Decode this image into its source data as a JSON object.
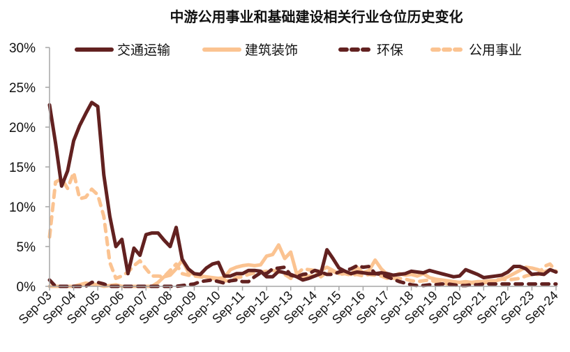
{
  "chart_data": {
    "type": "line",
    "title": "中游公用事业和基础建设相关行业仓位历史变化",
    "xlabel": "",
    "ylabel": "",
    "ylim": [
      0,
      30
    ],
    "yticks": [
      "0%",
      "5%",
      "10%",
      "15%",
      "20%",
      "25%",
      "30%"
    ],
    "xticks": [
      "Sep-03",
      "Sep-04",
      "Sep-05",
      "Sep-06",
      "Sep-07",
      "Sep-08",
      "Sep-09",
      "Sep-10",
      "Sep-11",
      "Sep-12",
      "Sep-13",
      "Sep-14",
      "Sep-15",
      "Sep-16",
      "Sep-17",
      "Sep-18",
      "Sep-19",
      "Sep-20",
      "Sep-21",
      "Sep-22",
      "Sep-23",
      "Sep-24"
    ],
    "grid": false,
    "legend_position": "top",
    "x": [
      2003.75,
      2004.0,
      2004.25,
      2004.5,
      2004.75,
      2005.0,
      2005.25,
      2005.5,
      2005.75,
      2006.0,
      2006.25,
      2006.5,
      2006.75,
      2007.0,
      2007.25,
      2007.5,
      2007.75,
      2008.0,
      2008.25,
      2008.5,
      2008.75,
      2009.0,
      2009.25,
      2009.5,
      2009.75,
      2010.0,
      2010.25,
      2010.5,
      2010.75,
      2011.0,
      2011.25,
      2011.5,
      2011.75,
      2012.0,
      2012.25,
      2012.5,
      2012.75,
      2013.0,
      2013.25,
      2013.5,
      2013.75,
      2014.0,
      2014.25,
      2014.5,
      2014.75,
      2015.0,
      2015.25,
      2015.5,
      2015.75,
      2016.0,
      2016.25,
      2016.5,
      2016.75,
      2017.0,
      2017.25,
      2017.5,
      2017.75,
      2018.0,
      2018.25,
      2018.5,
      2018.75,
      2019.0,
      2019.25,
      2019.5,
      2019.75,
      2020.0,
      2020.25,
      2020.5,
      2020.75,
      2021.0,
      2021.25,
      2021.5,
      2021.75,
      2022.0,
      2022.25,
      2022.5,
      2022.75,
      2023.0,
      2023.25,
      2023.5,
      2023.75,
      2024.0,
      2024.25,
      2024.5,
      2024.75
    ],
    "series": [
      {
        "name": "交通运输",
        "style": "solid",
        "color": "#622120",
        "values": [
          22.8,
          18.0,
          12.6,
          14.5,
          18.3,
          20.2,
          21.7,
          23.1,
          22.6,
          14.0,
          8.8,
          5.0,
          5.9,
          1.6,
          4.8,
          3.9,
          6.5,
          6.7,
          6.7,
          5.8,
          5.0,
          7.4,
          3.4,
          2.2,
          1.6,
          1.5,
          2.3,
          2.8,
          3.0,
          1.3,
          1.3,
          1.6,
          1.6,
          2.0,
          2.0,
          1.9,
          1.2,
          1.2,
          1.9,
          1.7,
          1.5,
          1.2,
          0.8,
          1.0,
          1.3,
          1.6,
          4.6,
          3.5,
          2.3,
          1.9,
          1.6,
          1.8,
          1.7,
          1.6,
          1.6,
          1.7,
          1.6,
          1.4,
          1.5,
          1.6,
          1.9,
          1.8,
          1.7,
          2.0,
          1.8,
          1.6,
          1.4,
          1.2,
          1.3,
          2.1,
          1.8,
          1.5,
          1.1,
          1.2,
          1.3,
          1.4,
          1.8,
          2.5,
          2.5,
          2.2,
          1.5,
          1.6,
          1.5,
          2.1,
          1.8
        ]
      },
      {
        "name": "建筑装饰",
        "style": "solid",
        "color": "#FBC391",
        "values": [
          0.0,
          0.0,
          0.0,
          0.0,
          0.0,
          0.2,
          0.4,
          0.3,
          0.2,
          0.0,
          0.1,
          0.2,
          0.0,
          0.0,
          0.0,
          0.0,
          0.0,
          0.0,
          0.5,
          1.2,
          1.4,
          2.2,
          3.3,
          1.8,
          1.5,
          1.3,
          1.2,
          1.1,
          1.0,
          1.1,
          2.1,
          2.4,
          2.6,
          2.7,
          2.6,
          2.7,
          3.8,
          4.0,
          5.2,
          3.5,
          4.3,
          1.5,
          1.1,
          1.3,
          1.3,
          2.0,
          2.4,
          2.0,
          1.6,
          1.7,
          1.5,
          2.4,
          1.7,
          2.0,
          3.3,
          2.2,
          1.5,
          1.3,
          1.6,
          1.4,
          1.5,
          1.3,
          1.6,
          1.1,
          0.9,
          0.8,
          0.7,
          0.6,
          0.5,
          0.6,
          0.5,
          0.6,
          0.6,
          0.7,
          0.7,
          0.9,
          1.2,
          1.6,
          2.0,
          2.4,
          2.3,
          2.1,
          1.8,
          2.1,
          1.8
        ]
      },
      {
        "name": "环保",
        "style": "dashed",
        "color": "#622120",
        "values": [
          0.8,
          0.0,
          0.0,
          0.0,
          0.0,
          0.0,
          0.0,
          0.5,
          0.5,
          0.3,
          0.0,
          0.0,
          0.0,
          0.0,
          0.0,
          0.0,
          0.0,
          0.0,
          0.0,
          0.0,
          0.0,
          0.0,
          0.1,
          0.2,
          0.3,
          0.6,
          0.7,
          0.8,
          0.6,
          0.4,
          0.7,
          0.8,
          0.6,
          0.6,
          1.2,
          1.7,
          1.6,
          2.2,
          2.3,
          2.4,
          1.4,
          1.2,
          1.5,
          1.6,
          2.0,
          1.8,
          1.5,
          1.5,
          1.8,
          2.0,
          2.2,
          2.6,
          2.4,
          2.5,
          1.6,
          1.5,
          1.2,
          0.9,
          0.6,
          0.4,
          0.2,
          0.1,
          0.1,
          0.2,
          0.2,
          0.3,
          0.3,
          0.2,
          0.1,
          0.1,
          0.2,
          0.2,
          0.3,
          0.3,
          0.3,
          0.3,
          0.3,
          0.3,
          0.3,
          0.3,
          0.3,
          0.3,
          0.3,
          0.3,
          0.3
        ]
      },
      {
        "name": "公用事业",
        "style": "dashed",
        "color": "#FBC391",
        "values": [
          6.2,
          13.1,
          13.5,
          12.3,
          14.3,
          11.0,
          11.2,
          12.2,
          11.5,
          8.8,
          3.0,
          1.0,
          1.3,
          1.8,
          2.6,
          3.2,
          2.2,
          1.3,
          1.3,
          1.2,
          2.0,
          2.8,
          1.6,
          1.4,
          1.3,
          1.2,
          1.1,
          1.0,
          0.9,
          0.7,
          0.7,
          1.1,
          1.2,
          1.5,
          1.7,
          1.8,
          1.9,
          2.0,
          1.8,
          1.5,
          1.0,
          1.5,
          2.2,
          2.1,
          2.0,
          1.2,
          1.8,
          1.9,
          1.5,
          1.6,
          1.4,
          1.5,
          1.3,
          1.5,
          1.4,
          1.3,
          1.0,
          1.0,
          1.0,
          0.9,
          0.7,
          0.6,
          0.7,
          0.8,
          0.6,
          0.5,
          0.3,
          0.4,
          0.5,
          0.4,
          0.4,
          0.5,
          0.4,
          0.6,
          0.8,
          0.9,
          0.8,
          0.9,
          1.0,
          1.3,
          1.5,
          1.5,
          2.5,
          2.8,
          1.9
        ]
      }
    ]
  },
  "legend": {
    "items": [
      {
        "label": "交通运输"
      },
      {
        "label": "建筑装饰"
      },
      {
        "label": "环保"
      },
      {
        "label": "公用事业"
      }
    ]
  },
  "colors": {
    "dark": "#622120",
    "light": "#FBC391",
    "axis": "#A6A6A6"
  }
}
